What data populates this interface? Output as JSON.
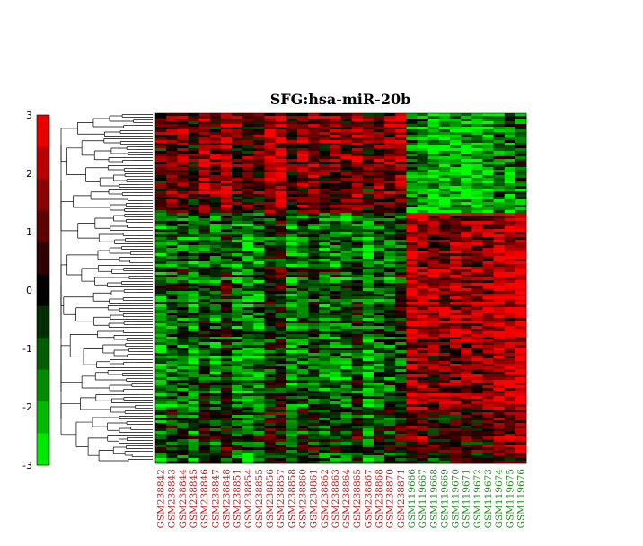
{
  "chart_data": {
    "type": "heatmap",
    "title": "SFG:hsa-miR-20b",
    "colorbar": {
      "min": -3,
      "max": 3,
      "ticks": [
        3,
        2,
        1,
        0,
        -1,
        -2,
        -3
      ],
      "low_color": "#00ff00",
      "mid_color": "#000000",
      "high_color": "#ff0000"
    },
    "samples": [
      {
        "name": "GSM238842",
        "group": "red"
      },
      {
        "name": "GSM238843",
        "group": "red"
      },
      {
        "name": "GSM238844",
        "group": "red"
      },
      {
        "name": "GSM238845",
        "group": "red"
      },
      {
        "name": "GSM238846",
        "group": "red"
      },
      {
        "name": "GSM238847",
        "group": "red"
      },
      {
        "name": "GSM238848",
        "group": "red"
      },
      {
        "name": "GSM238851",
        "group": "red"
      },
      {
        "name": "GSM238854",
        "group": "red"
      },
      {
        "name": "GSM238855",
        "group": "red"
      },
      {
        "name": "GSM238856",
        "group": "red"
      },
      {
        "name": "GSM238857",
        "group": "red"
      },
      {
        "name": "GSM238858",
        "group": "red"
      },
      {
        "name": "GSM238860",
        "group": "red"
      },
      {
        "name": "GSM238861",
        "group": "red"
      },
      {
        "name": "GSM238862",
        "group": "red"
      },
      {
        "name": "GSM238863",
        "group": "red"
      },
      {
        "name": "GSM238864",
        "group": "red"
      },
      {
        "name": "GSM238865",
        "group": "red"
      },
      {
        "name": "GSM238867",
        "group": "red"
      },
      {
        "name": "GSM238868",
        "group": "red"
      },
      {
        "name": "GSM238870",
        "group": "red"
      },
      {
        "name": "GSM238871",
        "group": "red"
      },
      {
        "name": "GSM119666",
        "group": "green"
      },
      {
        "name": "GSM119667",
        "group": "green"
      },
      {
        "name": "GSM119668",
        "group": "green"
      },
      {
        "name": "GSM119669",
        "group": "green"
      },
      {
        "name": "GSM119670",
        "group": "green"
      },
      {
        "name": "GSM119671",
        "group": "green"
      },
      {
        "name": "GSM119672",
        "group": "green"
      },
      {
        "name": "GSM119673",
        "group": "green"
      },
      {
        "name": "GSM119674",
        "group": "green"
      },
      {
        "name": "GSM119675",
        "group": "green"
      },
      {
        "name": "GSM119676",
        "group": "green"
      }
    ],
    "sample_label_colors": {
      "red": "#b22222",
      "green": "#228b22"
    },
    "row_pattern": [
      {
        "block": "top",
        "group_red_mean": 1.4,
        "group_green_mean": -1.6
      },
      {
        "block": "middle",
        "group_red_mean": -0.9,
        "group_green_mean": 2.2
      },
      {
        "block": "bottom",
        "group_red_mean": -0.4,
        "group_green_mean": 1.0
      }
    ]
  }
}
